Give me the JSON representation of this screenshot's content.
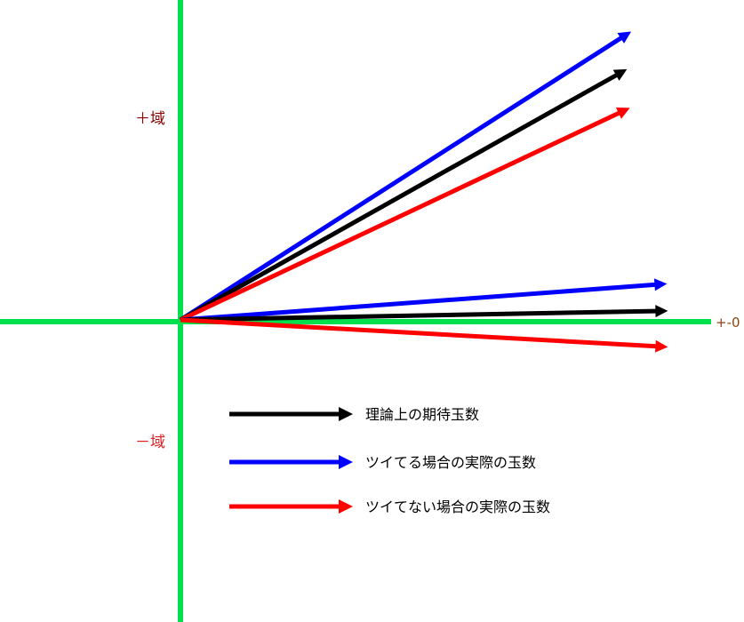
{
  "axes": {
    "color": "#00e04c",
    "plus_label": "＋域",
    "plus_label_color": "#8b0000",
    "minus_label": "－域",
    "minus_label_color": "#e02020",
    "zero_label": "+-0",
    "zero_label_color": "#8b4513"
  },
  "arrows": {
    "upper": [
      {
        "kind": "lucky",
        "color": "#0000ff"
      },
      {
        "kind": "theory",
        "color": "#000000"
      },
      {
        "kind": "unlucky",
        "color": "#ff0000"
      }
    ],
    "lower": [
      {
        "kind": "lucky",
        "color": "#0000ff"
      },
      {
        "kind": "theory",
        "color": "#000000"
      },
      {
        "kind": "unlucky",
        "color": "#ff0000"
      }
    ]
  },
  "legend": [
    {
      "label": "理論上の期待玉数",
      "color": "#000000"
    },
    {
      "label": "ツイてる場合の実際の玉数",
      "color": "#0000ff"
    },
    {
      "label": "ツイてない場合の実際の玉数",
      "color": "#ff0000"
    }
  ]
}
